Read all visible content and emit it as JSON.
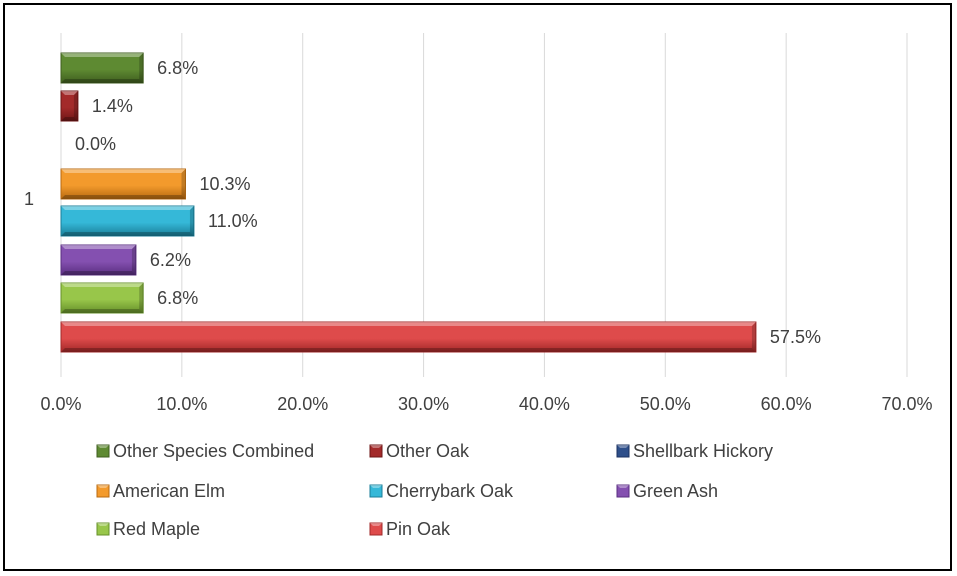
{
  "chart_data": {
    "type": "bar",
    "orientation": "horizontal",
    "categories": [
      "1"
    ],
    "xlim": [
      0,
      70
    ],
    "x_ticks": [
      "0.0%",
      "10.0%",
      "20.0%",
      "30.0%",
      "40.0%",
      "50.0%",
      "60.0%",
      "70.0%"
    ],
    "grid": true,
    "legend_position": "bottom",
    "series": [
      {
        "name": "Other Species Combined",
        "value": 6.8,
        "label": "6.8%",
        "color": "#5E8A32",
        "dark": "#3F5E1F"
      },
      {
        "name": "Other Oak",
        "value": 1.4,
        "label": "1.4%",
        "color": "#A32A2A",
        "dark": "#6E1616"
      },
      {
        "name": "Shellbark Hickory",
        "value": 0.0,
        "label": "0.0%",
        "color": "#2E4F8A",
        "dark": "#1B3260"
      },
      {
        "name": "American Elm",
        "value": 10.3,
        "label": "10.3%",
        "color": "#F39A2C",
        "dark": "#B86A10"
      },
      {
        "name": "Cherrybark Oak",
        "value": 11.0,
        "label": "11.0%",
        "color": "#35B8D8",
        "dark": "#1A7E98"
      },
      {
        "name": "Green Ash",
        "value": 6.2,
        "label": "6.2%",
        "color": "#8450B0",
        "dark": "#5A2E80"
      },
      {
        "name": "Red Maple",
        "value": 6.8,
        "label": "6.8%",
        "color": "#98C64A",
        "dark": "#66902A"
      },
      {
        "name": "Pin Oak",
        "value": 57.5,
        "label": "57.5%",
        "color": "#DE4B4B",
        "dark": "#A22828"
      }
    ]
  }
}
